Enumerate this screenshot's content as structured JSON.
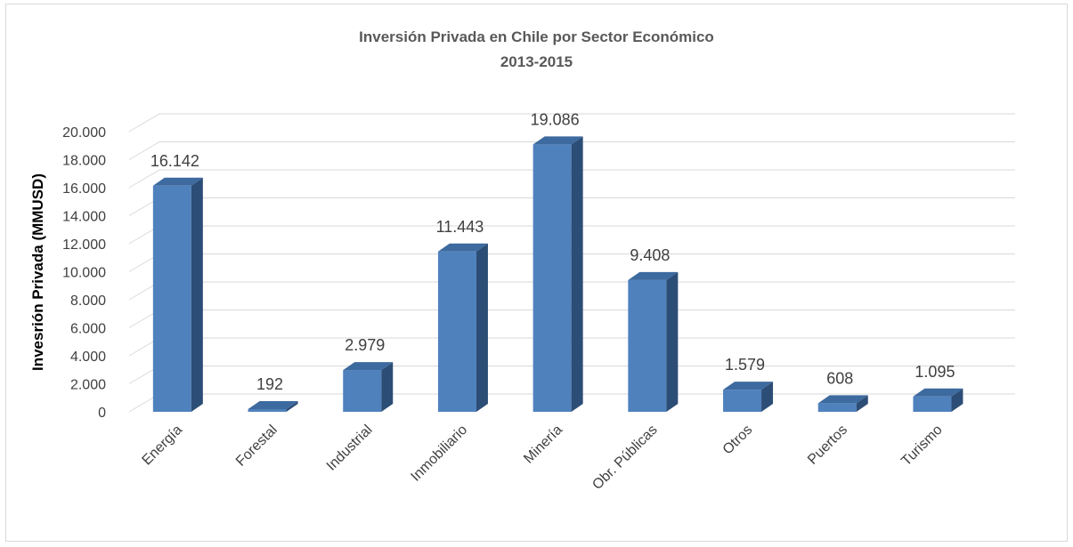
{
  "chart_data": {
    "type": "bar",
    "title": "Inversión Privada en Chile por Sector Económico",
    "subtitle": "2013-2015",
    "ylabel": "Invesrión Privada (MMUSD)",
    "xlabel": "",
    "categories": [
      "Energía",
      "Forestal",
      "Industrial",
      "Inmobiliario",
      "Minería",
      "Obr. Públicas",
      "Otros",
      "Puertos",
      "Turismo"
    ],
    "values": [
      16142,
      192,
      2979,
      11443,
      19086,
      9408,
      1579,
      608,
      1095
    ],
    "value_labels": [
      "16.142",
      "192",
      "2.979",
      "11.443",
      "19.086",
      "9.408",
      "1.579",
      "608",
      "1.095"
    ],
    "yticks": [
      "0",
      "2.000",
      "4.000",
      "6.000",
      "8.000",
      "10.000",
      "12.000",
      "14.000",
      "16.000",
      "18.000",
      "20.000"
    ],
    "ylim": [
      0,
      20000
    ],
    "grid": true,
    "legend": "none",
    "colors": {
      "bar_front": "#4f81bd",
      "bar_side": "#2c4d75",
      "bar_top": "#3d6a9f",
      "grid": "#d9d9d9"
    }
  }
}
